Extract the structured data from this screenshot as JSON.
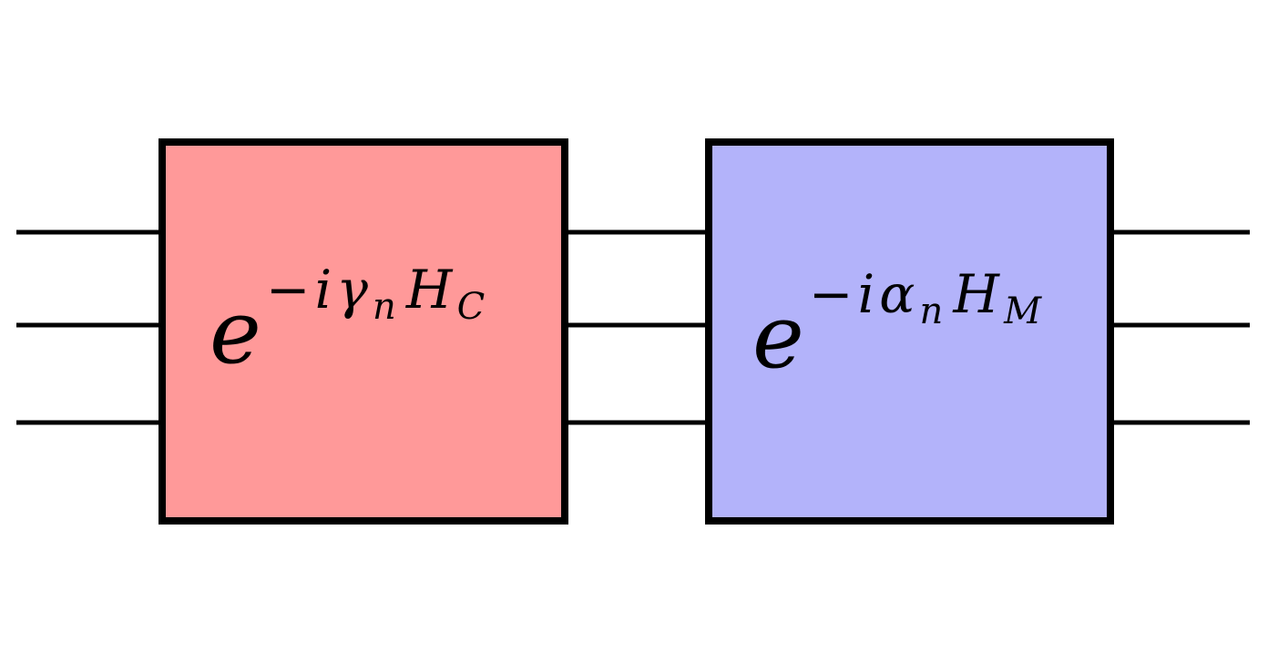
{
  "colors": {
    "cost_gate_fill": "#ff9999",
    "mixer_gate_fill": "#b3b3fa",
    "wire": "#000000",
    "border": "#000000"
  },
  "wire_count": 3,
  "gates": [
    {
      "base": "e",
      "exp_sign": "−",
      "exp_i": "i",
      "exp_param": "γ",
      "param_sub": "n",
      "hamiltonian": "H",
      "ham_sub": "C"
    },
    {
      "base": "e",
      "exp_sign": "−",
      "exp_i": "i",
      "exp_param": "α",
      "param_sub": "n",
      "hamiltonian": "H",
      "ham_sub": "M"
    }
  ]
}
